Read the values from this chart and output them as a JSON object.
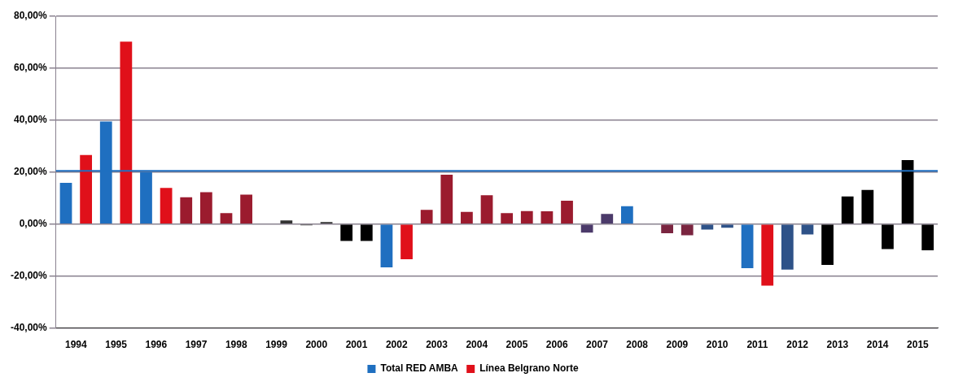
{
  "chart_data": {
    "type": "bar",
    "categories": [
      "1994",
      "1995",
      "1996",
      "1997",
      "1998",
      "1999",
      "2000",
      "2001",
      "2002",
      "2003",
      "2004",
      "2005",
      "2006",
      "2007",
      "2008",
      "2009",
      "2010",
      "2011",
      "2012",
      "2013",
      "2014",
      "2015"
    ],
    "series": [
      {
        "name": "Total RED AMBA",
        "color": "#1f6fc0",
        "values": [
          15.9,
          39.5,
          20,
          10.3,
          4.2,
          0,
          -0.5,
          -6.5,
          -16.7,
          5.5,
          4.7,
          4.2,
          4.9,
          -3.3,
          6.9,
          -3.5,
          -2.1,
          -17,
          -17.5,
          -15.7,
          13.1,
          24.6
        ],
        "colors": [
          "#1f6fc0",
          "#1f6fc0",
          "#1f6fc0",
          "#9b1b2e",
          "#9b1b2e",
          "#9b1b2e",
          "#333333",
          "#000000",
          "#1f6fc0",
          "#9b1b2e",
          "#9b1b2e",
          "#9b1b2e",
          "#9b1b2e",
          "#4b3a6a",
          "#1f6fc0",
          "#7a2540",
          "#2e5288",
          "#1f6fc0",
          "#2e5288",
          "#000000",
          "#000000",
          "#000000"
        ]
      },
      {
        "name": "Línea Belgrano Norte",
        "color": "#e0101a",
        "values": [
          26.6,
          70.2,
          13.9,
          12.3,
          11.3,
          1.4,
          0.8,
          -6.5,
          -13.5,
          19,
          11.1,
          5,
          9,
          3.9,
          0,
          -4.3,
          -1.4,
          -23.7,
          -4,
          10.6,
          -9.6,
          -10.1
        ],
        "colors": [
          "#e0101a",
          "#e0101a",
          "#e0101a",
          "#9b1b2e",
          "#9b1b2e",
          "#333333",
          "#333333",
          "#000000",
          "#e0101a",
          "#9b1b2e",
          "#9b1b2e",
          "#9b1b2e",
          "#9b1b2e",
          "#4b3a6a",
          "#e0101a",
          "#7a2540",
          "#2e5288",
          "#e0101a",
          "#2e5288",
          "#000000",
          "#000000",
          "#000000"
        ]
      }
    ],
    "ylim": [
      -40,
      80
    ],
    "yticks": [
      {
        "value": -40,
        "label": "-40,00%"
      },
      {
        "value": -20,
        "label": "-20,00%"
      },
      {
        "value": 0,
        "label": "0,00%"
      },
      {
        "value": 20,
        "label": "20,00%"
      },
      {
        "value": 40,
        "label": "40,00%"
      },
      {
        "value": 60,
        "label": "60,00%"
      },
      {
        "value": 80,
        "label": "80,00%"
      }
    ],
    "ref_lines": [
      {
        "axis": "y",
        "value": 20.5,
        "color": "#1f6fc0"
      }
    ],
    "grid": "y",
    "legend": "bottom"
  }
}
